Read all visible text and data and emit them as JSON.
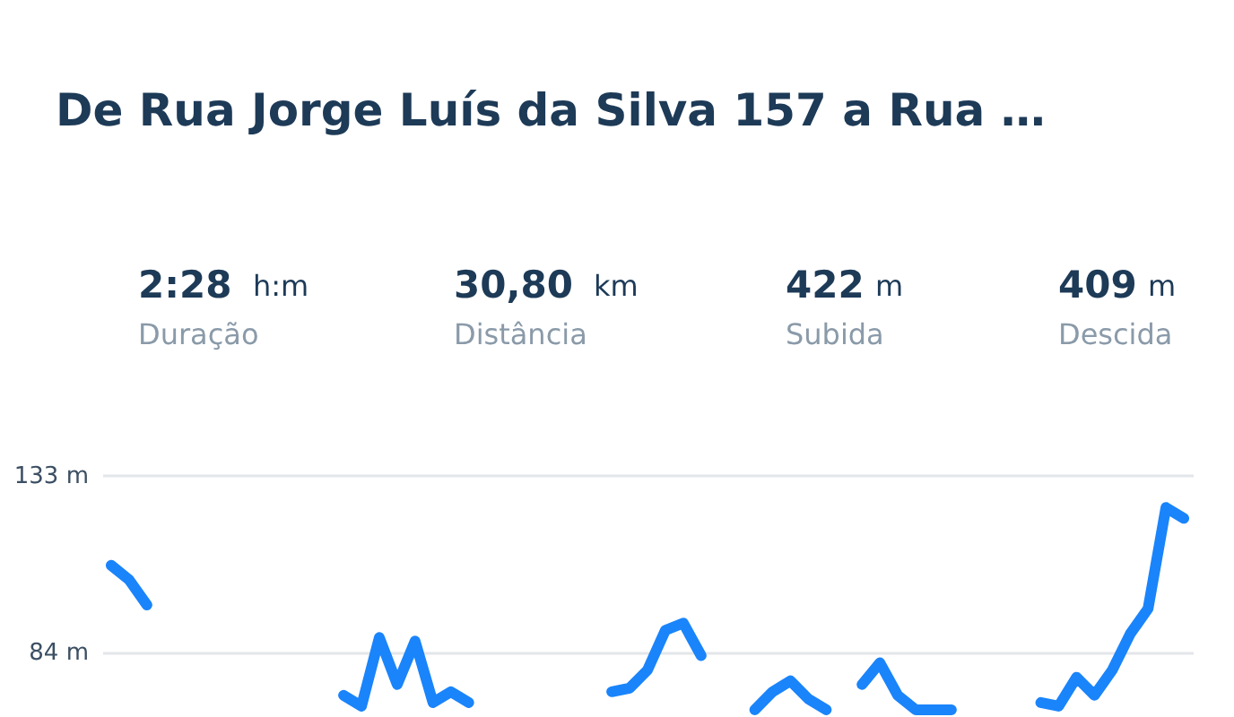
{
  "chart_data": {
    "type": "line",
    "title": "De Rua Jorge Luís da Silva 157 a Rua …",
    "annotations": [
      "2:28",
      "h:m",
      "Duração",
      "30,80",
      "km",
      "Distância",
      "422",
      "m",
      "Subida",
      "409",
      "m",
      "Descida"
    ],
    "categories": [
      null,
      null,
      null,
      null,
      null,
      null,
      null,
      null,
      null,
      null,
      null,
      null,
      null,
      null,
      null,
      null,
      null,
      null,
      null,
      null,
      null,
      null,
      null,
      null,
      null,
      null,
      null,
      null,
      null,
      null,
      null,
      null,
      null,
      null,
      null,
      null,
      null,
      null,
      null,
      null,
      null,
      null,
      null,
      null,
      null,
      null,
      null,
      null,
      null,
      null,
      null,
      null,
      null,
      null,
      null,
      null,
      null,
      null,
      null,
      null,
      null
    ],
    "series": [
      {
        "color": "#1a84fb",
        "values": [
          108,
          104,
          97,
          null,
          null,
          null,
          null,
          null,
          null,
          null,
          null,
          null,
          null,
          72,
          69,
          88,
          75,
          87,
          70,
          73,
          70,
          null,
          null,
          null,
          null,
          null,
          null,
          null,
          73,
          74,
          79,
          90,
          92,
          83,
          null,
          null,
          68,
          73,
          76,
          71,
          68,
          null,
          75,
          81,
          72,
          68,
          68,
          68,
          null,
          null,
          null,
          null,
          70,
          69,
          77,
          72,
          79,
          89,
          96,
          124,
          121
        ]
      }
    ],
    "ylim": [
      66,
      133
    ],
    "yticks": [
      {
        "value": 84,
        "label": "84 m"
      },
      {
        "value": 133,
        "label": "133 m"
      }
    ],
    "grid": "y",
    "tick_labels": "y",
    "line_style": "solid",
    "marker": "none",
    "legend": false
  }
}
